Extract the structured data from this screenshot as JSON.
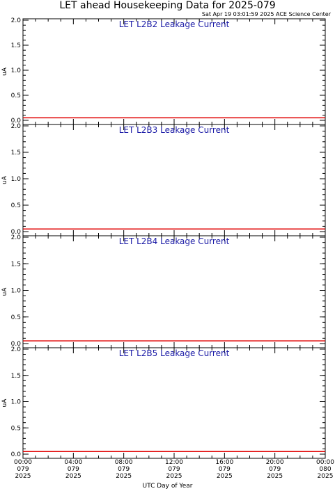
{
  "title": "LET ahead Housekeeping Data for 2025-079",
  "timestamp": "Sat Apr 19 03:01:59 2025 ACE Science Center",
  "xlabel": "UTC Day of Year",
  "colors": {
    "series": "#e00000",
    "panel_title": "#1a1aa6"
  },
  "x_ticks": [
    [
      "00:00",
      "079",
      "2025"
    ],
    [
      "04:00",
      "079",
      "2025"
    ],
    [
      "08:00",
      "079",
      "2025"
    ],
    [
      "12:00",
      "079",
      "2025"
    ],
    [
      "16:00",
      "079",
      "2025"
    ],
    [
      "20:00",
      "079",
      "2025"
    ],
    [
      "00:00",
      "080",
      "2025"
    ]
  ],
  "chart_data": [
    {
      "type": "line",
      "title": "LET L2B2 Leakage Current",
      "ylabel": "uA",
      "ylim": [
        0,
        2.0
      ],
      "yticks": [
        "0.0",
        "0.5",
        "1.0",
        "1.5",
        "2.0"
      ],
      "xlim_hours": [
        0,
        24
      ],
      "series": [
        {
          "x": [
            0,
            24
          ],
          "y": [
            0.05,
            0.05
          ]
        }
      ]
    },
    {
      "type": "line",
      "title": "LET L2B3 Leakage Current",
      "ylabel": "uA",
      "ylim": [
        0,
        2.0
      ],
      "yticks": [
        "0.0",
        "0.5",
        "1.0",
        "1.5",
        "2.0"
      ],
      "xlim_hours": [
        0,
        24
      ],
      "series": [
        {
          "x": [
            0,
            24
          ],
          "y": [
            0.05,
            0.05
          ]
        }
      ]
    },
    {
      "type": "line",
      "title": "LET L2B4 Leakage Current",
      "ylabel": "uA",
      "ylim": [
        0,
        2.0
      ],
      "yticks": [
        "0.0",
        "0.5",
        "1.0",
        "1.5",
        "2.0"
      ],
      "xlim_hours": [
        0,
        24
      ],
      "series": [
        {
          "x": [
            0,
            24
          ],
          "y": [
            0.05,
            0.05
          ]
        }
      ]
    },
    {
      "type": "line",
      "title": "LET L2B5 Leakage Current",
      "ylabel": "uA",
      "ylim": [
        0,
        2.0
      ],
      "yticks": [
        "0.0",
        "0.5",
        "1.0",
        "1.5",
        "2.0"
      ],
      "xlim_hours": [
        0,
        24
      ],
      "series": [
        {
          "x": [
            0,
            24
          ],
          "y": [
            0.05,
            0.05
          ]
        }
      ]
    }
  ]
}
